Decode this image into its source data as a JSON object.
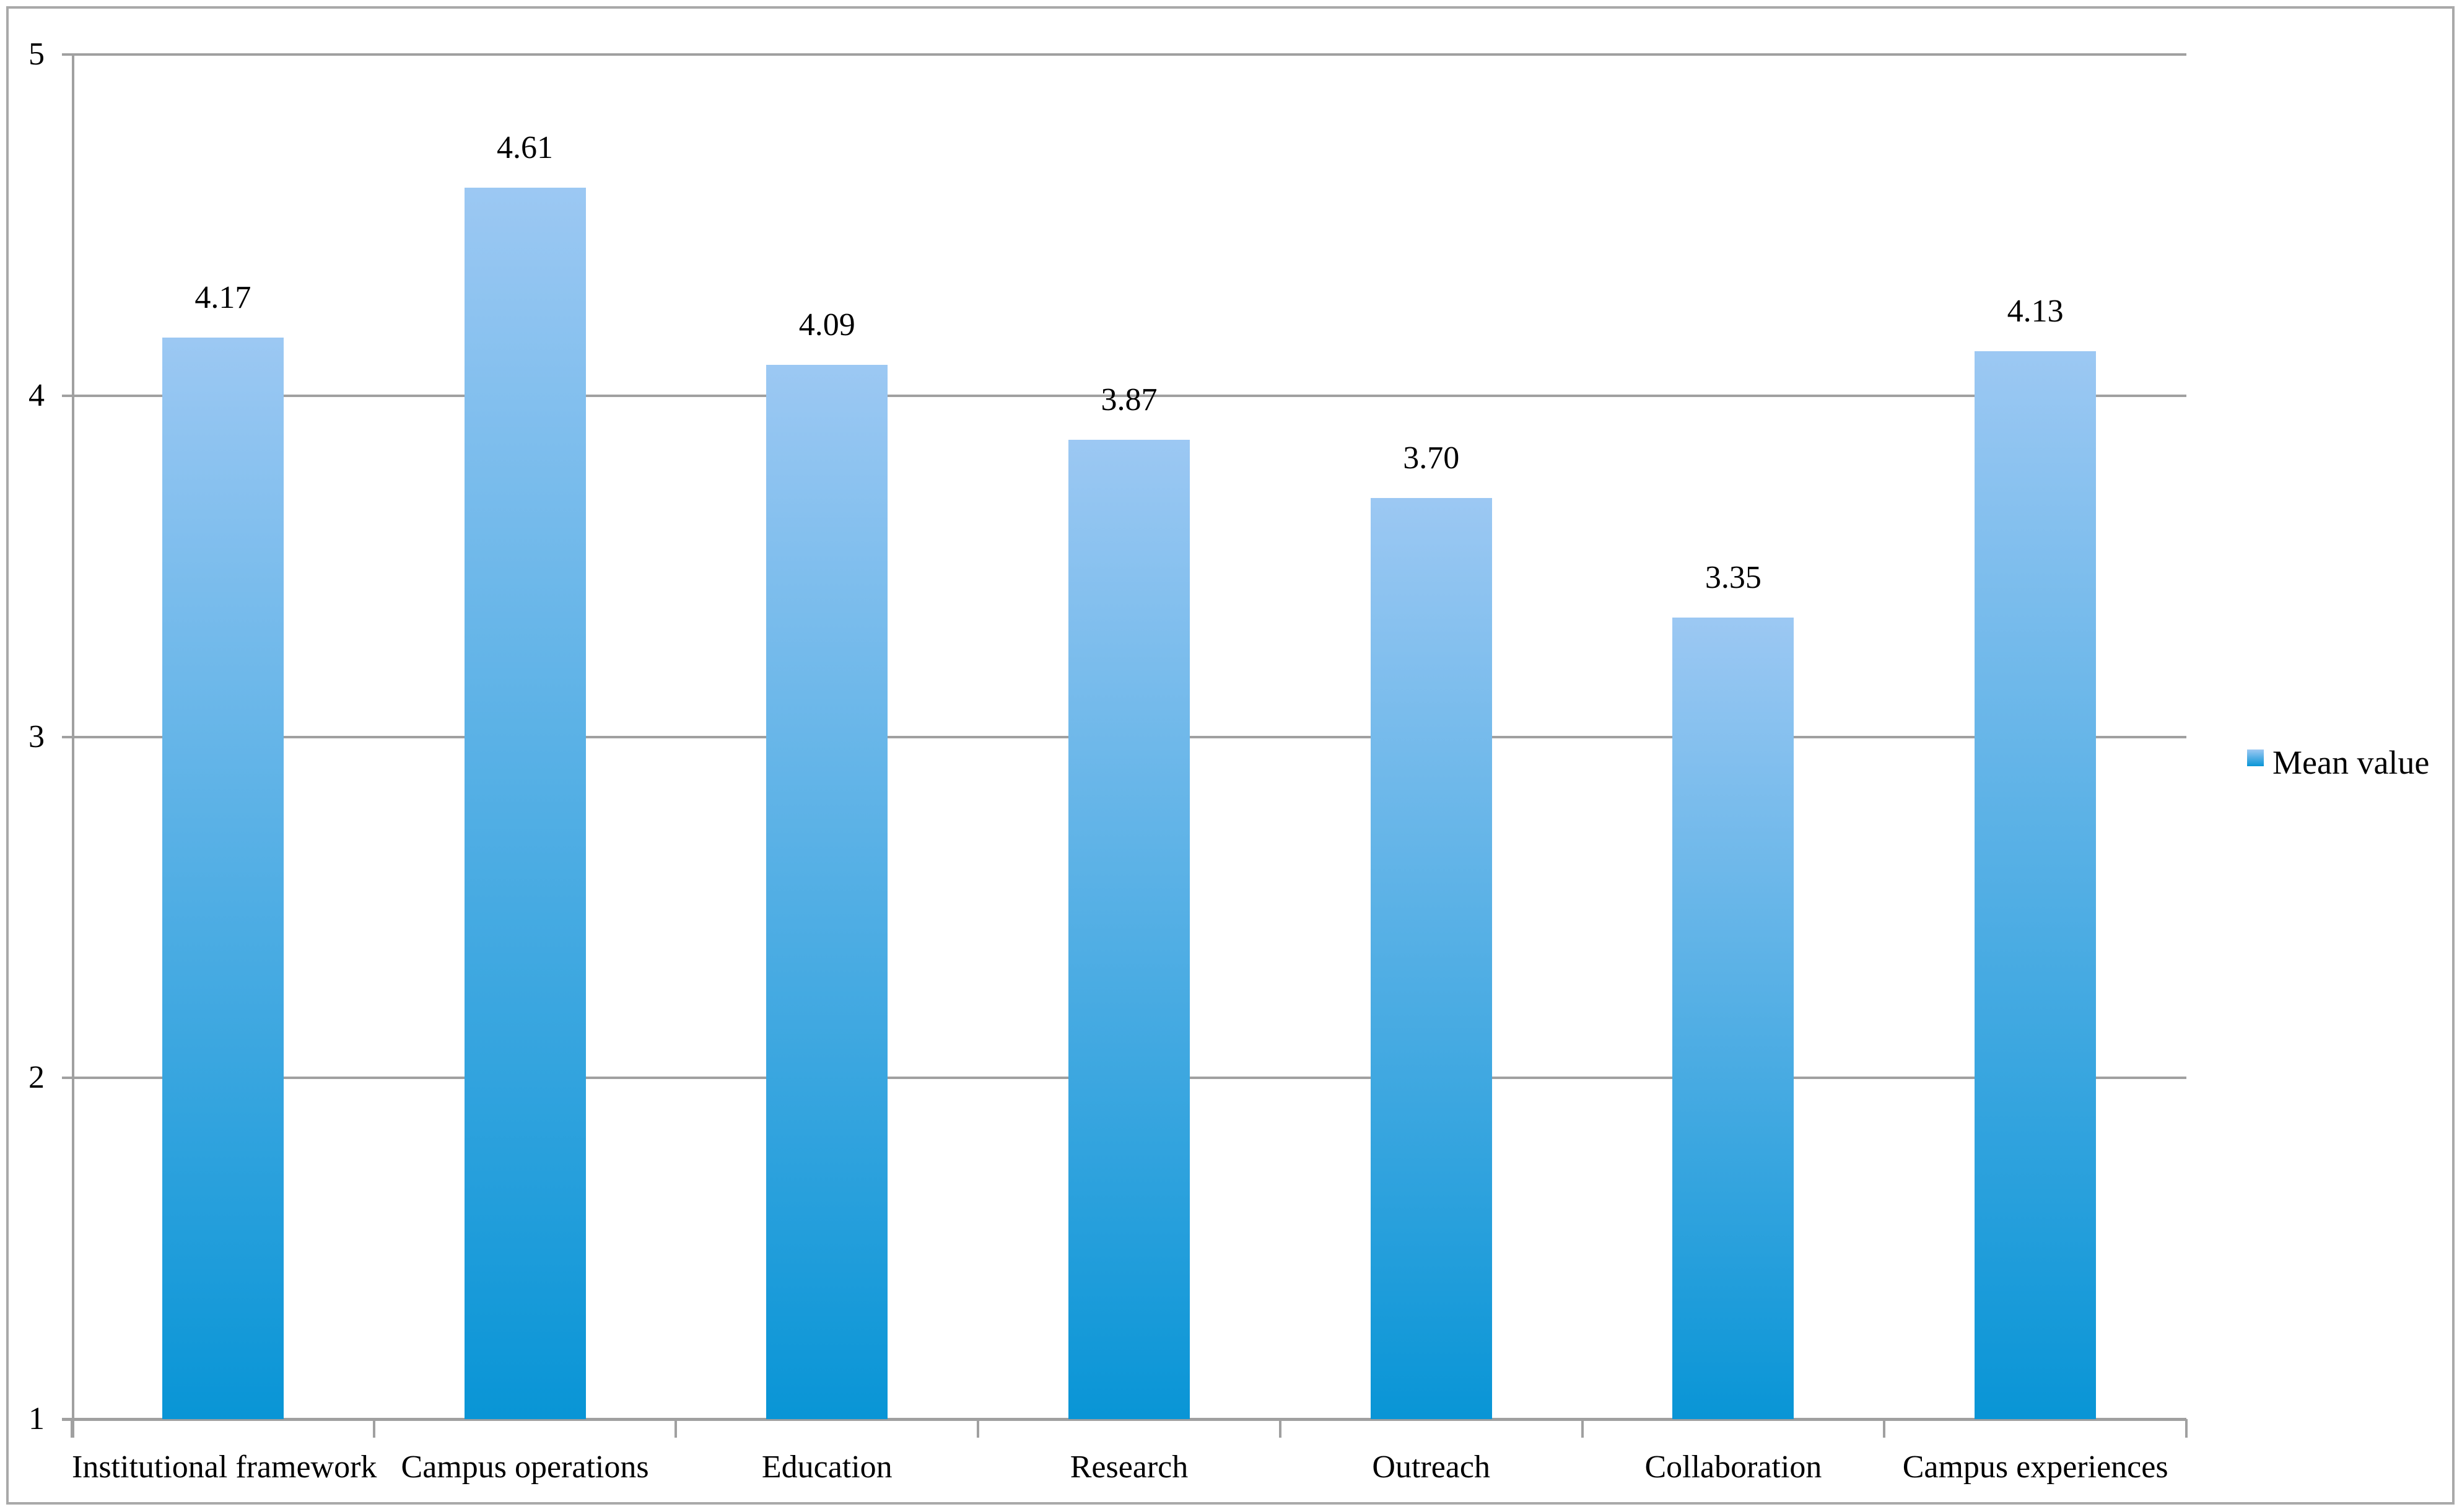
{
  "chart_data": {
    "type": "bar",
    "title": "",
    "xlabel": "",
    "ylabel": "",
    "categories": [
      "Institutional framework",
      "Campus operations",
      "Education",
      "Research",
      "Outreach",
      "Collaboration",
      "Campus experiences"
    ],
    "series": [
      {
        "name": "Mean value",
        "values": [
          4.17,
          4.61,
          4.09,
          3.87,
          3.7,
          3.35,
          4.13
        ],
        "value_labels": [
          "4.17",
          "4.61",
          "4.09",
          "3.87",
          "3.70",
          "3.35",
          "4.13"
        ]
      }
    ],
    "ylim": [
      1,
      5
    ],
    "yticks": [
      1,
      2,
      3,
      4,
      5
    ],
    "ytick_labels": [
      "1",
      "2",
      "3",
      "4",
      "5"
    ],
    "grid": true,
    "legend": {
      "position": "right",
      "entries": [
        "Mean value"
      ]
    },
    "colors": {
      "bar_gradient_top": "#9cc8f3",
      "bar_gradient_bottom": "#0995d6",
      "gridline": "#a0a0a0",
      "axis": "#a0a0a0",
      "frame_border": "#a9a9a9",
      "text": "#000000",
      "background": "#ffffff"
    }
  }
}
